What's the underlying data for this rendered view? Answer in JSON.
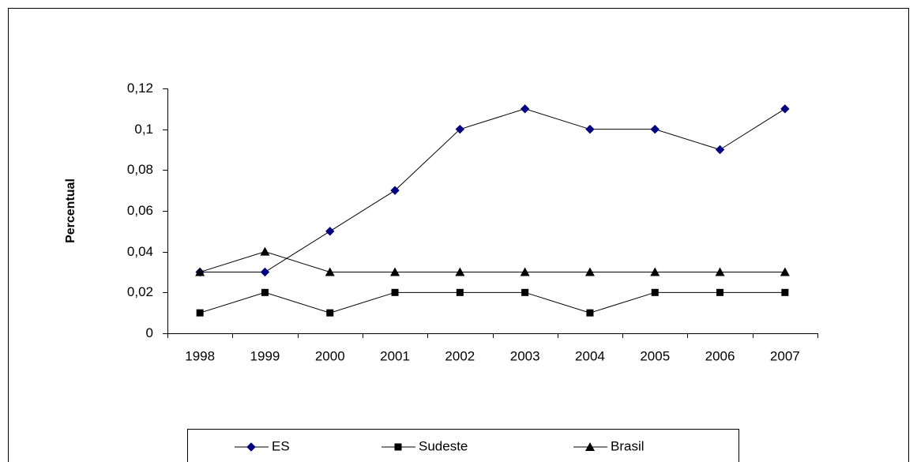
{
  "chart_data": {
    "type": "line",
    "y_label": "Percentual",
    "categories": [
      "1998",
      "1999",
      "2000",
      "2001",
      "2002",
      "2003",
      "2004",
      "2005",
      "2006",
      "2007"
    ],
    "series": [
      {
        "name": "ES",
        "color": "#000080",
        "marker": "diamond",
        "values": [
          0.03,
          0.03,
          0.05,
          0.07,
          0.1,
          0.11,
          0.1,
          0.1,
          0.09,
          0.11
        ]
      },
      {
        "name": "Sudeste",
        "color": "#000000",
        "marker": "square",
        "values": [
          0.01,
          0.02,
          0.01,
          0.02,
          0.02,
          0.02,
          0.01,
          0.02,
          0.02,
          0.02
        ]
      },
      {
        "name": "Brasil",
        "color": "#000000",
        "marker": "triangle",
        "values": [
          0.03,
          0.04,
          0.03,
          0.03,
          0.03,
          0.03,
          0.03,
          0.03,
          0.03,
          0.03
        ]
      }
    ],
    "ylim": [
      0,
      0.12
    ],
    "yticks": [
      0,
      {
        "value": 0.02,
        "label": "0,02"
      },
      {
        "value": 0.04,
        "label": "0,04"
      },
      {
        "value": 0.06,
        "label": "0,06"
      },
      {
        "value": 0.08,
        "label": "0,08"
      },
      {
        "value": 0.1,
        "label": "0,1"
      },
      {
        "value": 0.12,
        "label": "0,12"
      }
    ],
    "legend": "bottom"
  }
}
